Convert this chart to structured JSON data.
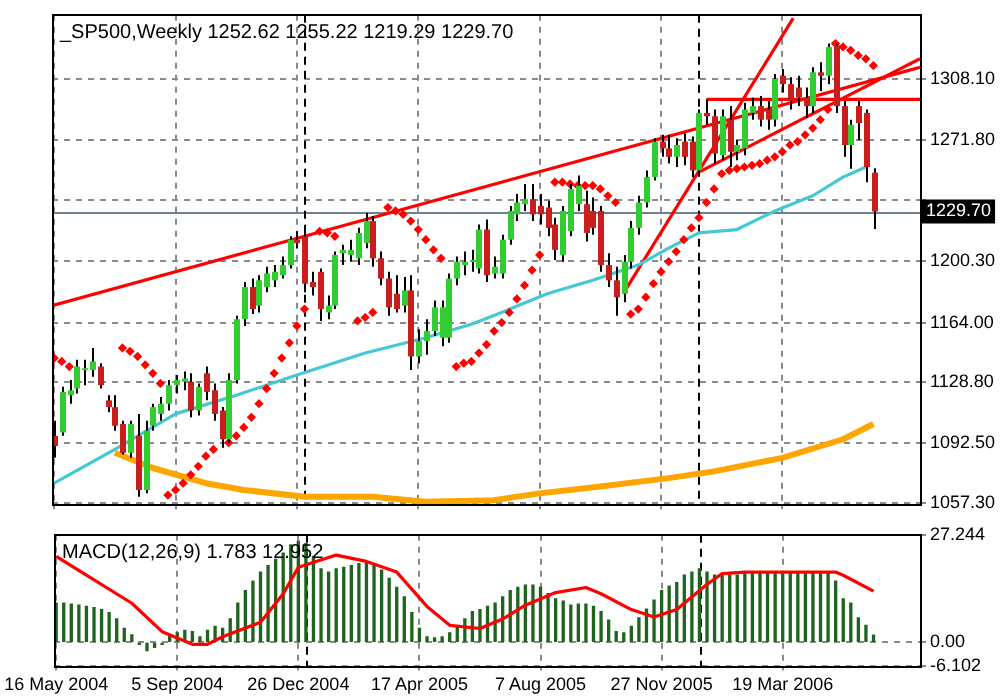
{
  "chart_data": [
    {
      "type": "candlestick",
      "title": "_SP500,Weekly 1252.62 1255.22 1219.29 1229.70",
      "x": [
        "2004-05-16",
        "2004-05-23",
        "2004-05-30",
        "2004-06-06",
        "2004-06-13",
        "2004-06-20",
        "2004-06-27",
        "2004-07-04",
        "2004-07-11",
        "2004-07-18",
        "2004-07-25",
        "2004-08-01",
        "2004-08-08",
        "2004-08-15",
        "2004-08-22",
        "2004-08-29",
        "2004-09-05",
        "2004-09-12",
        "2004-09-19",
        "2004-09-26",
        "2004-10-03",
        "2004-10-10",
        "2004-10-17",
        "2004-10-24",
        "2004-10-31",
        "2004-11-07",
        "2004-11-14",
        "2004-11-21",
        "2004-11-28",
        "2004-12-05",
        "2004-12-12",
        "2004-12-19",
        "2004-12-26",
        "2005-01-02",
        "2005-01-09",
        "2005-01-16",
        "2005-01-23",
        "2005-01-30",
        "2005-02-06",
        "2005-02-13",
        "2005-02-20",
        "2005-02-27",
        "2005-03-06",
        "2005-03-13",
        "2005-03-20",
        "2005-03-27",
        "2005-04-03",
        "2005-04-10",
        "2005-04-17",
        "2005-04-24",
        "2005-05-01",
        "2005-05-08",
        "2005-05-15",
        "2005-05-22",
        "2005-05-29",
        "2005-06-05",
        "2005-06-12",
        "2005-06-19",
        "2005-06-26",
        "2005-07-03",
        "2005-07-10",
        "2005-07-17",
        "2005-07-24",
        "2005-07-31",
        "2005-08-07",
        "2005-08-14",
        "2005-08-21",
        "2005-08-28",
        "2005-09-04",
        "2005-09-11",
        "2005-09-18",
        "2005-09-25",
        "2005-10-02",
        "2005-10-09",
        "2005-10-16",
        "2005-10-23",
        "2005-10-30",
        "2005-11-06",
        "2005-11-13",
        "2005-11-20",
        "2005-11-27",
        "2005-12-04",
        "2005-12-11",
        "2005-12-18",
        "2005-12-25",
        "2006-01-01",
        "2006-01-08",
        "2006-01-15",
        "2006-01-22",
        "2006-01-29",
        "2006-02-05",
        "2006-02-12",
        "2006-02-19",
        "2006-02-26",
        "2006-03-05",
        "2006-03-12",
        "2006-03-19",
        "2006-03-26",
        "2006-04-02",
        "2006-04-09",
        "2006-04-16",
        "2006-04-23",
        "2006-04-30",
        "2006-05-07",
        "2006-05-14",
        "2006-05-21",
        "2006-05-28",
        "2006-06-04",
        "2006-06-11"
      ],
      "ohlc": [
        [
          1097,
          1106,
          1084,
          1091
        ],
        [
          1099,
          1126,
          1097,
          1123
        ],
        [
          1121,
          1130,
          1116,
          1124
        ],
        [
          1125,
          1142,
          1122,
          1138
        ],
        [
          1136,
          1142,
          1127,
          1137
        ],
        [
          1136,
          1149,
          1132,
          1141
        ],
        [
          1138,
          1140,
          1125,
          1127
        ],
        [
          1118,
          1121,
          1111,
          1114
        ],
        [
          1114,
          1121,
          1100,
          1103
        ],
        [
          1104,
          1106,
          1086,
          1087
        ],
        [
          1087,
          1106,
          1084,
          1104
        ],
        [
          1097,
          1110,
          1061,
          1065
        ],
        [
          1065,
          1106,
          1063,
          1100
        ],
        [
          1103,
          1116,
          1100,
          1114
        ],
        [
          1110,
          1120,
          1106,
          1116
        ],
        [
          1116,
          1130,
          1112,
          1127
        ],
        [
          1127,
          1133,
          1122,
          1130
        ],
        [
          1129,
          1135,
          1124,
          1131
        ],
        [
          1129,
          1134,
          1108,
          1112
        ],
        [
          1112,
          1128,
          1109,
          1126
        ],
        [
          1134,
          1138,
          1118,
          1123
        ],
        [
          1124,
          1128,
          1106,
          1110
        ],
        [
          1112,
          1114,
          1090,
          1095
        ],
        [
          1095,
          1134,
          1093,
          1130
        ],
        [
          1130,
          1168,
          1128,
          1166
        ],
        [
          1166,
          1188,
          1162,
          1185
        ],
        [
          1185,
          1190,
          1169,
          1172
        ],
        [
          1174,
          1192,
          1170,
          1189
        ],
        [
          1185,
          1197,
          1182,
          1193
        ],
        [
          1189,
          1198,
          1185,
          1194
        ],
        [
          1192,
          1203,
          1190,
          1198
        ],
        [
          1198,
          1215,
          1196,
          1213
        ],
        [
          1213,
          1218,
          1208,
          1211
        ],
        [
          1215,
          1218,
          1182,
          1187
        ],
        [
          1188,
          1194,
          1180,
          1185
        ],
        [
          1194,
          1196,
          1165,
          1172
        ],
        [
          1170,
          1180,
          1166,
          1174
        ],
        [
          1174,
          1206,
          1172,
          1204
        ],
        [
          1205,
          1210,
          1198,
          1207
        ],
        [
          1204,
          1213,
          1200,
          1207
        ],
        [
          1202,
          1220,
          1198,
          1217
        ],
        [
          1211,
          1229,
          1208,
          1224
        ],
        [
          1224,
          1227,
          1197,
          1202
        ],
        [
          1202,
          1206,
          1186,
          1190
        ],
        [
          1190,
          1194,
          1168,
          1173
        ],
        [
          1181,
          1192,
          1170,
          1172
        ],
        [
          1174,
          1191,
          1170,
          1183
        ],
        [
          1183,
          1192,
          1136,
          1144
        ],
        [
          1144,
          1160,
          1140,
          1153
        ],
        [
          1153,
          1166,
          1145,
          1159
        ],
        [
          1159,
          1177,
          1156,
          1173
        ],
        [
          1155,
          1177,
          1150,
          1173
        ],
        [
          1155,
          1193,
          1152,
          1190
        ],
        [
          1190,
          1203,
          1186,
          1200
        ],
        [
          1198,
          1206,
          1192,
          1200
        ],
        [
          1200,
          1207,
          1194,
          1201
        ],
        [
          1196,
          1222,
          1193,
          1219
        ],
        [
          1219,
          1225,
          1188,
          1192
        ],
        [
          1193,
          1203,
          1190,
          1197
        ],
        [
          1193,
          1216,
          1190,
          1213
        ],
        [
          1213,
          1233,
          1210,
          1230
        ],
        [
          1228,
          1240,
          1224,
          1235
        ],
        [
          1234,
          1246,
          1230,
          1237
        ],
        [
          1237,
          1246,
          1224,
          1228
        ],
        [
          1233,
          1240,
          1222,
          1228
        ],
        [
          1232,
          1236,
          1215,
          1220
        ],
        [
          1222,
          1226,
          1201,
          1207
        ],
        [
          1204,
          1233,
          1200,
          1230
        ],
        [
          1218,
          1246,
          1215,
          1243
        ],
        [
          1234,
          1251,
          1230,
          1245
        ],
        [
          1234,
          1242,
          1212,
          1217
        ],
        [
          1230,
          1238,
          1216,
          1220
        ],
        [
          1230,
          1233,
          1194,
          1198
        ],
        [
          1198,
          1205,
          1185,
          1189
        ],
        [
          1189,
          1197,
          1168,
          1179
        ],
        [
          1181,
          1204,
          1176,
          1200
        ],
        [
          1200,
          1224,
          1196,
          1220
        ],
        [
          1220,
          1239,
          1216,
          1235
        ],
        [
          1235,
          1254,
          1232,
          1250
        ],
        [
          1250,
          1273,
          1248,
          1271
        ],
        [
          1271,
          1275,
          1262,
          1267
        ],
        [
          1267,
          1275,
          1258,
          1262
        ],
        [
          1262,
          1273,
          1256,
          1269
        ],
        [
          1271,
          1276,
          1257,
          1262
        ],
        [
          1271,
          1274,
          1250,
          1254
        ],
        [
          1254,
          1290,
          1252,
          1288
        ],
        [
          1288,
          1296,
          1281,
          1286
        ],
        [
          1286,
          1290,
          1258,
          1264
        ],
        [
          1263,
          1290,
          1260,
          1286
        ],
        [
          1284,
          1292,
          1256,
          1265
        ],
        [
          1265,
          1272,
          1260,
          1269
        ],
        [
          1267,
          1294,
          1263,
          1290
        ],
        [
          1288,
          1297,
          1284,
          1292
        ],
        [
          1292,
          1298,
          1280,
          1284
        ],
        [
          1290,
          1295,
          1278,
          1284
        ],
        [
          1284,
          1311,
          1280,
          1308
        ],
        [
          1310,
          1314,
          1300,
          1305
        ],
        [
          1305,
          1309,
          1290,
          1295
        ],
        [
          1303,
          1310,
          1292,
          1297
        ],
        [
          1297,
          1303,
          1285,
          1292
        ],
        [
          1292,
          1315,
          1288,
          1312
        ],
        [
          1312,
          1318,
          1301,
          1310
        ],
        [
          1310,
          1329,
          1305,
          1327
        ],
        [
          1328,
          1329,
          1288,
          1292
        ],
        [
          1292,
          1295,
          1262,
          1269
        ],
        [
          1269,
          1284,
          1255,
          1281
        ],
        [
          1292,
          1295,
          1272,
          1282
        ],
        [
          1288,
          1290,
          1247,
          1256
        ],
        [
          1252.62,
          1255.22,
          1219.29,
          1229.7
        ]
      ],
      "colors": [
        "#c81e1e",
        "#32cd32",
        "#32cd32",
        "#32cd32",
        "#32cd32",
        "#32cd32",
        "#c81e1e",
        "#c81e1e",
        "#c81e1e",
        "#c81e1e",
        "#32cd32",
        "#c81e1e",
        "#32cd32",
        "#32cd32",
        "#32cd32",
        "#32cd32",
        "#32cd32",
        "#32cd32",
        "#c81e1e",
        "#32cd32",
        "#c81e1e",
        "#c81e1e",
        "#c81e1e",
        "#32cd32",
        "#32cd32",
        "#32cd32",
        "#c81e1e",
        "#32cd32",
        "#32cd32",
        "#32cd32",
        "#32cd32",
        "#32cd32",
        "#c81e1e",
        "#c81e1e",
        "#c81e1e",
        "#c81e1e",
        "#32cd32",
        "#32cd32",
        "#32cd32",
        "#32cd32",
        "#32cd32",
        "#32cd32",
        "#c81e1e",
        "#c81e1e",
        "#c81e1e",
        "#c81e1e",
        "#32cd32",
        "#c81e1e",
        "#32cd32",
        "#32cd32",
        "#32cd32",
        "#32cd32",
        "#32cd32",
        "#32cd32",
        "#32cd32",
        "#32cd32",
        "#32cd32",
        "#c81e1e",
        "#32cd32",
        "#32cd32",
        "#32cd32",
        "#32cd32",
        "#32cd32",
        "#c81e1e",
        "#c81e1e",
        "#c81e1e",
        "#c81e1e",
        "#32cd32",
        "#32cd32",
        "#32cd32",
        "#c81e1e",
        "#c81e1e",
        "#c81e1e",
        "#c81e1e",
        "#c81e1e",
        "#32cd32",
        "#32cd32",
        "#32cd32",
        "#32cd32",
        "#32cd32",
        "#c81e1e",
        "#c81e1e",
        "#32cd32",
        "#c81e1e",
        "#c81e1e",
        "#32cd32",
        "#c81e1e",
        "#c81e1e",
        "#32cd32",
        "#c81e1e",
        "#32cd32",
        "#32cd32",
        "#32cd32",
        "#c81e1e",
        "#c81e1e",
        "#32cd32",
        "#c81e1e",
        "#c81e1e",
        "#c81e1e",
        "#c81e1e",
        "#32cd32",
        "#c81e1e",
        "#32cd32",
        "#c81e1e",
        "#c81e1e",
        "#32cd32",
        "#c81e1e",
        "#c81e1e",
        "#c81e1e"
      ],
      "series": [
        {
          "type": "line",
          "color": "#46c8d2",
          "x": [
            "2004-05-16",
            "2004-07-11",
            "2004-09-05",
            "2004-10-31",
            "2004-12-26",
            "2005-02-27",
            "2005-04-24",
            "2005-06-05",
            "2005-07-03",
            "2005-08-14",
            "2005-09-25",
            "2005-11-06",
            "2005-12-04",
            "2006-01-01",
            "2006-02-05",
            "2006-03-12",
            "2006-04-16",
            "2006-05-14",
            "2006-06-04"
          ],
          "values": [
            1069,
            1089,
            1110,
            1121,
            1133,
            1146,
            1155,
            1163,
            1170,
            1181,
            1189,
            1198,
            1208,
            1217,
            1219,
            1230,
            1239,
            1250,
            1256
          ]
        },
        {
          "type": "line",
          "color": "#ffa500",
          "x": [
            "2004-07-11",
            "2004-08-15",
            "2004-10-03",
            "2004-11-07",
            "2005-01-02",
            "2005-03-06",
            "2005-04-24",
            "2005-06-26",
            "2005-08-07",
            "2005-10-02",
            "2005-12-04",
            "2006-01-15",
            "2006-03-19",
            "2006-05-14",
            "2006-06-11"
          ],
          "values": [
            1087,
            1078,
            1069,
            1065,
            1061,
            1061,
            1058,
            1059,
            1063,
            1067,
            1072,
            1076,
            1084,
            1095,
            1104
          ]
        },
        {
          "type": "line",
          "color": "#ff0000",
          "x": [
            "2004-05-14",
            "2006-07-24"
          ],
          "values": [
            1174,
            1315
          ]
        },
        {
          "type": "line",
          "color": "#ff0000",
          "x": [
            "2005-10-23",
            "2006-03-29"
          ],
          "values": [
            1181,
            1344
          ]
        },
        {
          "type": "line",
          "color": "#ff0000",
          "x": [
            "2006-01-01",
            "2006-07-24"
          ],
          "values": [
            1253,
            1320
          ]
        },
        {
          "type": "line",
          "color": "#ff0000",
          "x": [
            "2006-01-08",
            "2006-07-24"
          ],
          "values": [
            1296,
            1296
          ]
        },
        {
          "type": "scatter",
          "marker": "diamond",
          "color": "#ff0000",
          "x": [
            "2004-05-16",
            "2004-05-23",
            "2004-05-30",
            "2004-07-18",
            "2004-07-25",
            "2004-08-01",
            "2004-08-08",
            "2004-08-15",
            "2004-08-22",
            "2004-08-29",
            "2004-09-05",
            "2004-09-12",
            "2004-09-19",
            "2004-09-26",
            "2004-10-03",
            "2004-10-10",
            "2004-10-24",
            "2004-10-31",
            "2004-11-07",
            "2004-11-14",
            "2004-11-21",
            "2004-11-28",
            "2004-12-05",
            "2004-12-12",
            "2004-12-19",
            "2004-12-26",
            "2005-01-02",
            "2005-01-16",
            "2005-01-23",
            "2005-01-30",
            "2005-02-20",
            "2005-02-27",
            "2005-03-06",
            "2005-03-20",
            "2005-03-27",
            "2005-04-03",
            "2005-04-10",
            "2005-04-17",
            "2005-04-24",
            "2005-05-01",
            "2005-05-08",
            "2005-05-22",
            "2005-05-29",
            "2005-06-05",
            "2005-06-12",
            "2005-06-19",
            "2005-06-26",
            "2005-07-03",
            "2005-07-10",
            "2005-07-17",
            "2005-07-24",
            "2005-07-31",
            "2005-08-07",
            "2005-08-21",
            "2005-08-28",
            "2005-09-04",
            "2005-09-11",
            "2005-09-18",
            "2005-09-25",
            "2005-10-02",
            "2005-10-09",
            "2005-10-16",
            "2005-10-30",
            "2005-11-06",
            "2005-11-13",
            "2005-11-20",
            "2005-11-27",
            "2005-12-04",
            "2005-12-11",
            "2005-12-18",
            "2005-12-25",
            "2006-01-01",
            "2006-01-08",
            "2006-01-15",
            "2006-01-22",
            "2006-01-29",
            "2006-02-05",
            "2006-02-12",
            "2006-02-19",
            "2006-02-26",
            "2006-03-05",
            "2006-03-12",
            "2006-03-19",
            "2006-03-26",
            "2006-04-02",
            "2006-04-09",
            "2006-04-16",
            "2006-04-23",
            "2006-04-30",
            "2006-05-07",
            "2006-05-14",
            "2006-05-21",
            "2006-05-28",
            "2006-06-04",
            "2006-06-11"
          ],
          "values": [
            1143,
            1141,
            1138,
            1149,
            1147,
            1144,
            1139,
            1134,
            1128,
            1062,
            1065,
            1069,
            1074,
            1079,
            1085,
            1089,
            1093,
            1097,
            1102,
            1108,
            1116,
            1125,
            1134,
            1143,
            1152,
            1162,
            1172,
            1218,
            1217,
            1215,
            1165,
            1167,
            1170,
            1232,
            1230,
            1228,
            1224,
            1219,
            1213,
            1207,
            1202,
            1138,
            1140,
            1141,
            1146,
            1151,
            1159,
            1164,
            1170,
            1178,
            1186,
            1195,
            1204,
            1247,
            1247,
            1246,
            1245,
            1245,
            1245,
            1243,
            1239,
            1235,
            1169,
            1172,
            1179,
            1187,
            1194,
            1200,
            1206,
            1213,
            1220,
            1226,
            1235,
            1243,
            1252,
            1254,
            1255,
            1256,
            1257,
            1258,
            1260,
            1262,
            1265,
            1269,
            1271,
            1275,
            1279,
            1284,
            1290,
            1329,
            1327,
            1325,
            1322,
            1320,
            1316
          ]
        }
      ],
      "xlim": [
        "2004-05-14",
        "2006-07-24"
      ],
      "xticks": [
        "2004-05-16",
        "2004-09-05",
        "2004-12-26",
        "2005-04-17",
        "2005-08-07",
        "2005-11-27",
        "2006-03-19"
      ],
      "ylim": [
        1056,
        1346
      ],
      "yticks": [
        {
          "value": 1057.3,
          "label": "1057.30"
        },
        {
          "value": 1092.5,
          "label": "1092.50"
        },
        {
          "value": 1128.8,
          "label": "1128.80"
        },
        {
          "value": 1164,
          "label": "1164.00"
        },
        {
          "value": 1200.3,
          "label": "1200.30"
        },
        {
          "value": 1236.6,
          "label": null
        },
        {
          "value": 1271.8,
          "label": "1271.80"
        },
        {
          "value": 1308.1,
          "label": "1308.10"
        }
      ],
      "tick_labels": "y",
      "ref_lines": [
        {
          "axis": "y",
          "value": 1229.7,
          "label": "1229.70",
          "color": "#708090"
        },
        {
          "axis": "x",
          "value": "2005-01-02",
          "color": "#000000",
          "line_style": "dashed"
        },
        {
          "axis": "x",
          "value": "2006-01-01",
          "color": "#000000",
          "line_style": "dashed"
        }
      ],
      "grid": true,
      "legend": false
    },
    {
      "type": "bar",
      "title": "MACD(12,26,9) 1.783 12.952",
      "x": [
        "2004-05-16",
        "2004-05-23",
        "2004-05-30",
        "2004-06-06",
        "2004-06-13",
        "2004-06-20",
        "2004-06-27",
        "2004-07-04",
        "2004-07-11",
        "2004-07-18",
        "2004-07-25",
        "2004-08-01",
        "2004-08-08",
        "2004-08-15",
        "2004-08-22",
        "2004-08-29",
        "2004-09-05",
        "2004-09-12",
        "2004-09-19",
        "2004-09-26",
        "2004-10-03",
        "2004-10-10",
        "2004-10-17",
        "2004-10-24",
        "2004-10-31",
        "2004-11-07",
        "2004-11-14",
        "2004-11-21",
        "2004-11-28",
        "2004-12-05",
        "2004-12-12",
        "2004-12-19",
        "2004-12-26",
        "2005-01-02",
        "2005-01-09",
        "2005-01-16",
        "2005-01-23",
        "2005-01-30",
        "2005-02-06",
        "2005-02-13",
        "2005-02-20",
        "2005-02-27",
        "2005-03-06",
        "2005-03-13",
        "2005-03-20",
        "2005-03-27",
        "2005-04-03",
        "2005-04-10",
        "2005-04-17",
        "2005-04-24",
        "2005-05-01",
        "2005-05-08",
        "2005-05-15",
        "2005-05-22",
        "2005-05-29",
        "2005-06-05",
        "2005-06-12",
        "2005-06-19",
        "2005-06-26",
        "2005-07-03",
        "2005-07-10",
        "2005-07-17",
        "2005-07-24",
        "2005-07-31",
        "2005-08-07",
        "2005-08-14",
        "2005-08-21",
        "2005-08-28",
        "2005-09-04",
        "2005-09-11",
        "2005-09-18",
        "2005-09-25",
        "2005-10-02",
        "2005-10-09",
        "2005-10-16",
        "2005-10-23",
        "2005-10-30",
        "2005-11-06",
        "2005-11-13",
        "2005-11-20",
        "2005-11-27",
        "2005-12-04",
        "2005-12-11",
        "2005-12-18",
        "2005-12-25",
        "2006-01-01",
        "2006-01-08",
        "2006-01-15",
        "2006-01-22",
        "2006-01-29",
        "2006-02-05",
        "2006-02-12",
        "2006-02-19",
        "2006-02-26",
        "2006-03-05",
        "2006-03-12",
        "2006-03-19",
        "2006-03-26",
        "2006-04-02",
        "2006-04-09",
        "2006-04-16",
        "2006-04-23",
        "2006-04-30",
        "2006-05-07",
        "2006-05-14",
        "2006-05-21",
        "2006-05-28",
        "2006-06-04",
        "2006-06-11"
      ],
      "series": [
        {
          "type": "bar",
          "color": "#1e641e",
          "values": [
            9.9,
            9.9,
            9.7,
            9.4,
            9.1,
            8.8,
            8.3,
            7.5,
            5.9,
            3.5,
            1.9,
            -0.5,
            -2.1,
            -1.3,
            -0.5,
            1.9,
            2.4,
            3.0,
            2.7,
            1.4,
            3.0,
            4.0,
            3.5,
            5.9,
            9.9,
            13.1,
            15.5,
            17.8,
            19.4,
            21.0,
            22.6,
            24.7,
            25.6,
            25.0,
            21.8,
            18.6,
            17.8,
            18.6,
            19.0,
            19.4,
            19.9,
            20.2,
            19.4,
            18.3,
            16.2,
            13.9,
            11.5,
            7.5,
            3.5,
            1.4,
            1.1,
            1.4,
            2.4,
            4.0,
            5.9,
            7.8,
            8.3,
            9.1,
            9.9,
            11.5,
            13.1,
            13.9,
            14.5,
            14.5,
            13.9,
            12.3,
            11.0,
            10.4,
            9.4,
            9.7,
            9.7,
            9.1,
            7.8,
            5.6,
            2.7,
            2.4,
            4.0,
            6.2,
            8.4,
            10.7,
            13.1,
            14.2,
            15.1,
            17.0,
            17.8,
            18.6,
            17.8,
            17.0,
            17.4,
            17.0,
            17.0,
            17.4,
            17.5,
            17.5,
            17.7,
            17.8,
            17.8,
            17.7,
            17.5,
            17.4,
            17.5,
            17.7,
            17.8,
            15.5,
            11.0,
            9.9,
            6.2,
            4.3,
            1.783
          ]
        },
        {
          "type": "line",
          "color": "#ff0000",
          "x": [
            "2004-05-16",
            "2004-06-13",
            "2004-07-25",
            "2004-08-22",
            "2004-09-19",
            "2004-10-03",
            "2004-10-17",
            "2004-11-21",
            "2004-12-12",
            "2004-12-26",
            "2005-01-30",
            "2005-02-27",
            "2005-03-27",
            "2005-04-24",
            "2005-05-15",
            "2005-06-12",
            "2005-07-03",
            "2005-07-24",
            "2005-08-21",
            "2005-09-18",
            "2005-10-02",
            "2005-10-30",
            "2005-11-20",
            "2005-12-11",
            "2006-01-08",
            "2006-01-22",
            "2006-02-12",
            "2006-05-07",
            "2006-05-14",
            "2006-06-11"
          ],
          "values": [
            21.8,
            17,
            9.9,
            2.7,
            -0.5,
            -0.5,
            1.4,
            5.1,
            12.3,
            19,
            22.1,
            20.5,
            17.8,
            9.1,
            4.3,
            3.5,
            5.9,
            9.4,
            12.6,
            13.9,
            12.3,
            8.3,
            6.4,
            8.3,
            14.7,
            17.4,
            17.8,
            17.8,
            17.0,
            12.952
          ]
        }
      ],
      "xlim": [
        "2004-05-14",
        "2006-07-24"
      ],
      "xticks": [
        {
          "value": "2004-05-16",
          "label": "16 May 2004"
        },
        {
          "value": "2004-09-05",
          "label": "5 Sep 2004"
        },
        {
          "value": "2004-12-26",
          "label": "26 Dec 2004"
        },
        {
          "value": "2005-04-17",
          "label": "17 Apr 2005"
        },
        {
          "value": "2005-08-07",
          "label": "7 Aug 2005"
        },
        {
          "value": "2005-11-27",
          "label": "27 Nov 2005"
        },
        {
          "value": "2006-03-19",
          "label": "19 Mar 2006"
        }
      ],
      "ylim": [
        -6.102,
        27.244
      ],
      "yticks": [
        {
          "value": -6.102,
          "label": "-6.102"
        },
        {
          "value": 0,
          "label": "0.00"
        },
        {
          "value": 27.244,
          "label": "27.244"
        }
      ],
      "ref_lines": [
        {
          "axis": "x",
          "value": "2005-01-02",
          "color": "#000000",
          "line_style": "dashed"
        },
        {
          "axis": "x",
          "value": "2006-01-01",
          "color": "#000000",
          "line_style": "dashed"
        }
      ],
      "grid": true,
      "legend": false
    }
  ]
}
